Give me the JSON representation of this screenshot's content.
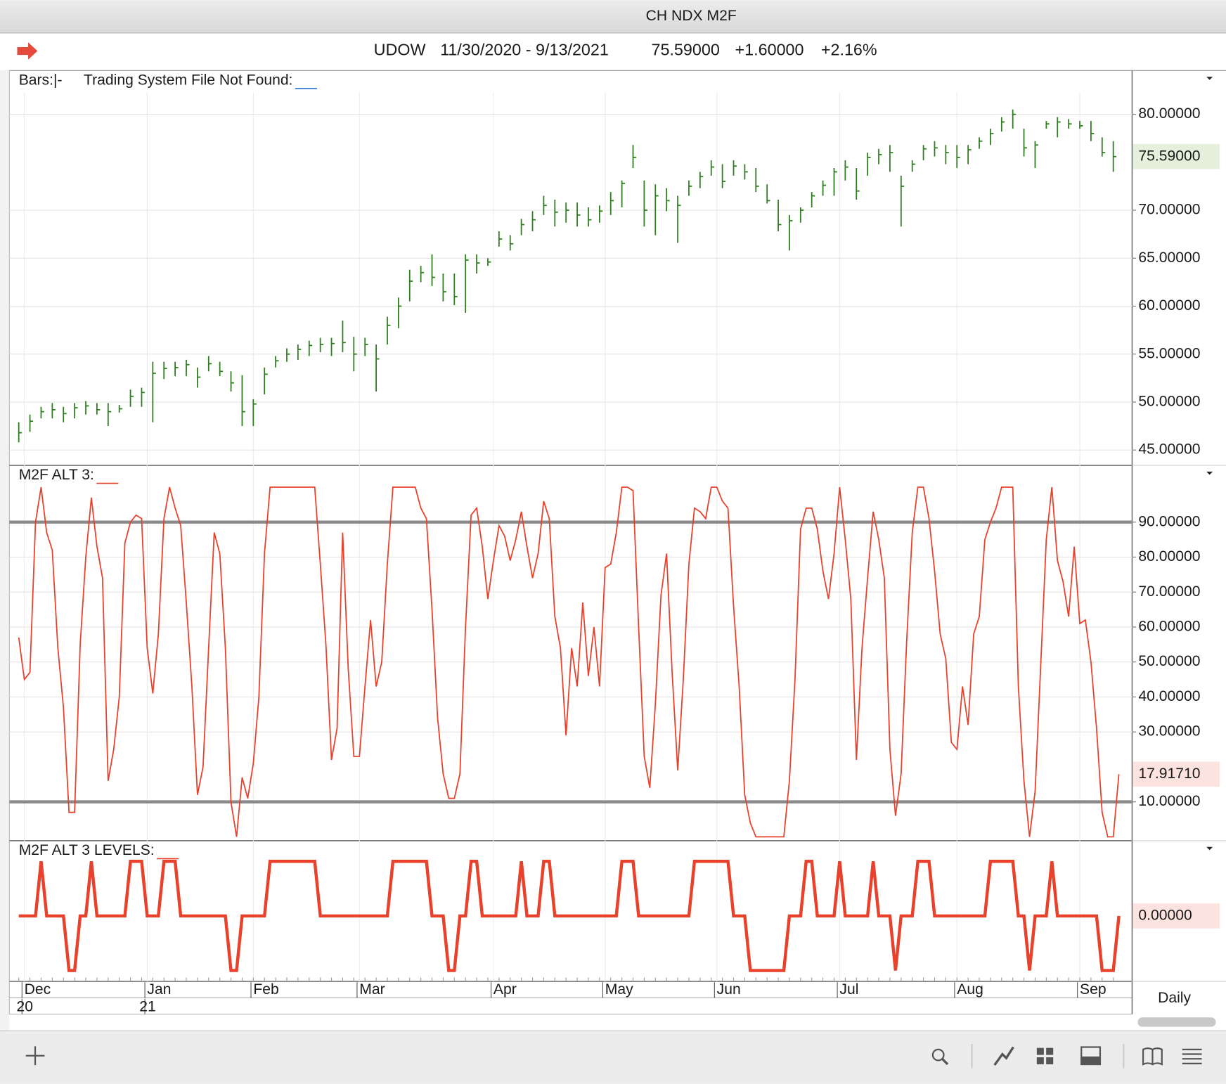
{
  "window": {
    "title": "CH NDX M2F",
    "period": "Daily"
  },
  "header": {
    "symbol": "UDOW",
    "date_range": "11/30/2020 - 9/13/2021",
    "last": "75.59000",
    "change": "+1.60000",
    "change_pct": "+2.16%"
  },
  "chart_data": [
    {
      "type": "ohlc",
      "label": "Bars:|-",
      "sublabel": "Trading System File Not Found:",
      "color": "#2e7d1e",
      "xlim": [
        0,
        197
      ],
      "ylim": [
        43.4,
        84.4
      ],
      "yticks": [
        {
          "value": 45,
          "label": "45.00000"
        },
        {
          "value": 50,
          "label": "50.00000"
        },
        {
          "value": 55,
          "label": "55.00000"
        },
        {
          "value": 60,
          "label": "60.00000"
        },
        {
          "value": 65,
          "label": "65.00000"
        },
        {
          "value": 70,
          "label": "70.00000"
        },
        {
          "value": 80,
          "label": "80.00000"
        }
      ],
      "last_value_label": "75.59000",
      "x": [
        0,
        2,
        4,
        6,
        8,
        10,
        12,
        14,
        16,
        18,
        20,
        22,
        24,
        26,
        28,
        30,
        32,
        34,
        36,
        38,
        40,
        42,
        44,
        46,
        48,
        50,
        52,
        54,
        56,
        58,
        60,
        62,
        64,
        66,
        68,
        70,
        72,
        74,
        76,
        78,
        80,
        82,
        84,
        86,
        88,
        90,
        92,
        94,
        96,
        98,
        100,
        102,
        104,
        106,
        108,
        110,
        112,
        114,
        116,
        118,
        120,
        122,
        124,
        126,
        128,
        130,
        132,
        134,
        136,
        138,
        140,
        142,
        144,
        146,
        148,
        150,
        152,
        154,
        156,
        158,
        160,
        162,
        164,
        166,
        168,
        170,
        172,
        174,
        176,
        178,
        180,
        182,
        184,
        186,
        188,
        190,
        192,
        194,
        196
      ],
      "high": [
        47.9,
        48.7,
        49.5,
        49.9,
        49.5,
        49.9,
        50.1,
        49.9,
        49.9,
        49.7,
        51.3,
        51.5,
        54.2,
        54.2,
        54.2,
        54.4,
        53.6,
        54.8,
        54.2,
        53.2,
        52.8,
        50.3,
        53.6,
        54.8,
        55.6,
        56.0,
        56.4,
        56.7,
        56.7,
        58.5,
        56.8,
        56.7,
        56.0,
        58.9,
        60.9,
        63.8,
        64.2,
        65.4,
        63.4,
        63.4,
        65.4,
        65.4,
        65.0,
        67.8,
        67.4,
        69.1,
        69.9,
        71.5,
        71.1,
        70.8,
        70.8,
        70.3,
        70.5,
        71.9,
        73.1,
        76.8,
        73.1,
        72.7,
        72.3,
        71.5,
        73.1,
        74.0,
        75.2,
        74.8,
        75.2,
        74.8,
        74.4,
        72.7,
        71.1,
        69.5,
        70.3,
        71.9,
        73.1,
        74.4,
        75.2,
        74.4,
        76.0,
        76.4,
        76.8,
        73.6,
        75.2,
        76.8,
        77.2,
        76.8,
        76.8,
        76.8,
        77.6,
        78.5,
        79.7,
        80.5,
        78.5,
        77.2,
        79.3,
        79.7,
        79.5,
        79.3,
        79.3,
        77.6,
        77.2
      ],
      "low": [
        45.8,
        46.9,
        48.3,
        48.3,
        47.9,
        48.3,
        48.7,
        48.7,
        47.5,
        48.9,
        49.5,
        49.5,
        47.9,
        52.4,
        52.7,
        52.7,
        51.5,
        53.2,
        52.7,
        51.1,
        47.5,
        47.5,
        50.8,
        53.6,
        54.2,
        54.4,
        54.8,
        55.2,
        54.8,
        55.2,
        53.2,
        54.8,
        51.1,
        56.0,
        57.7,
        60.5,
        62.5,
        62.1,
        60.5,
        60.1,
        59.3,
        63.4,
        64.2,
        66.2,
        65.8,
        67.4,
        67.8,
        69.5,
        68.3,
        68.7,
        68.3,
        68.3,
        68.7,
        69.5,
        70.3,
        74.4,
        68.3,
        67.4,
        69.9,
        66.6,
        71.5,
        72.3,
        73.6,
        72.3,
        73.6,
        73.2,
        71.9,
        70.7,
        67.8,
        65.8,
        68.7,
        70.3,
        71.5,
        71.5,
        73.1,
        71.1,
        73.6,
        74.8,
        74.0,
        68.3,
        74.0,
        75.2,
        75.6,
        74.8,
        74.4,
        74.8,
        76.4,
        76.8,
        78.2,
        78.5,
        75.6,
        74.4,
        78.5,
        77.6,
        78.5,
        78.5,
        77.2,
        75.6,
        74.0
      ],
      "close": [
        46.8,
        48.0,
        49.0,
        49.2,
        48.8,
        49.4,
        49.6,
        49.2,
        49.0,
        49.3,
        50.6,
        51.0,
        53.0,
        53.5,
        53.6,
        53.9,
        52.6,
        54.0,
        53.2,
        52.0,
        49.0,
        49.8,
        52.9,
        54.3,
        55.0,
        55.5,
        55.9,
        56.0,
        56.1,
        56.2,
        55.0,
        56.0,
        54.5,
        58.0,
        60.0,
        62.6,
        63.5,
        63.0,
        61.5,
        61.0,
        64.8,
        64.5,
        64.6,
        67.0,
        66.5,
        68.5,
        69.0,
        70.5,
        69.8,
        70.0,
        69.5,
        69.0,
        69.9,
        71.0,
        72.8,
        75.5,
        70.0,
        71.5,
        71.0,
        70.5,
        72.5,
        73.5,
        74.5,
        73.0,
        74.6,
        74.0,
        72.5,
        71.0,
        68.5,
        68.9,
        70.0,
        71.5,
        72.6,
        74.0,
        74.5,
        72.0,
        75.5,
        75.8,
        76.0,
        72.5,
        74.8,
        76.4,
        76.5,
        76.0,
        75.5,
        76.3,
        77.2,
        78.0,
        79.2,
        80.0,
        76.5,
        76.8,
        79.0,
        79.2,
        79.0,
        78.8,
        78.0,
        76.0,
        75.59
      ]
    },
    {
      "type": "line",
      "label": "M2F ALT 3:",
      "color": "#e8412c",
      "xlim": [
        0,
        197
      ],
      "ylim": [
        -1.1,
        106
      ],
      "yticks": [
        {
          "value": 10,
          "label": "10.00000"
        },
        {
          "value": 30,
          "label": "30.00000"
        },
        {
          "value": 40,
          "label": "40.00000"
        },
        {
          "value": 50,
          "label": "50.00000"
        },
        {
          "value": 60,
          "label": "60.00000"
        },
        {
          "value": 70,
          "label": "70.00000"
        },
        {
          "value": 80,
          "label": "80.00000"
        },
        {
          "value": 90,
          "label": "90.00000"
        }
      ],
      "reference_lines": [
        90,
        10
      ],
      "last_value_label": "17.91710",
      "x": [
        0,
        1,
        2,
        3,
        4,
        5,
        6,
        7,
        8,
        9,
        10,
        11,
        12,
        13,
        14,
        15,
        16,
        17,
        18,
        19,
        20,
        21,
        22,
        23,
        24,
        25,
        26,
        27,
        28,
        29,
        30,
        31,
        32,
        33,
        34,
        35,
        36,
        37,
        38,
        39,
        40,
        41,
        42,
        43,
        44,
        45,
        53,
        54,
        55,
        56,
        57,
        58,
        59,
        60,
        61,
        62,
        63,
        64,
        65,
        66,
        67,
        71,
        72,
        73,
        74,
        75,
        76,
        77,
        78,
        79,
        80,
        81,
        82,
        83,
        84,
        85,
        86,
        87,
        88,
        89,
        90,
        91,
        92,
        93,
        94,
        95,
        96,
        97,
        98,
        99,
        100,
        101,
        102,
        103,
        104,
        105,
        106,
        107,
        108,
        109,
        110,
        111,
        112,
        113,
        114,
        115,
        116,
        117,
        118,
        119,
        120,
        121,
        122,
        123,
        124,
        125,
        126,
        127,
        128,
        129,
        130,
        131,
        132,
        137,
        138,
        139,
        140,
        141,
        142,
        143,
        144,
        145,
        146,
        147,
        148,
        149,
        150,
        151,
        152,
        153,
        154,
        155,
        156,
        157,
        158,
        159,
        160,
        161,
        162,
        163,
        164,
        165,
        166,
        167,
        168,
        169,
        170,
        171,
        172,
        173,
        174,
        175,
        176,
        178,
        179,
        180,
        181,
        182,
        183,
        184,
        185,
        186,
        187,
        188,
        189,
        190,
        191,
        192,
        193,
        194,
        195,
        196,
        197
      ],
      "values": [
        57,
        45,
        47,
        90,
        100,
        87,
        82,
        54,
        37,
        7,
        7,
        55,
        80,
        97,
        83,
        74,
        16,
        25,
        40,
        84,
        90,
        92,
        91,
        54,
        41,
        58,
        91,
        100,
        94,
        89,
        67,
        43,
        12,
        20,
        54,
        87,
        81,
        54,
        10,
        0,
        17,
        11,
        21,
        40,
        81,
        100,
        100,
        78,
        55,
        22,
        31,
        87,
        48,
        23,
        23,
        43,
        62,
        43,
        50,
        78,
        100,
        100,
        94,
        91,
        65,
        34,
        18,
        11,
        11,
        18,
        60,
        92,
        94,
        83,
        68,
        79,
        89,
        86,
        79,
        85,
        93,
        83,
        74,
        81,
        96,
        91,
        63,
        54,
        29,
        54,
        43,
        67,
        46,
        60,
        43,
        77,
        78,
        87,
        100,
        100,
        99,
        60,
        23,
        14,
        38,
        69,
        81,
        47,
        19,
        45,
        78,
        94,
        93,
        91,
        100,
        100,
        96,
        94,
        66,
        43,
        12,
        4,
        0,
        0,
        16,
        45,
        88,
        94,
        94,
        88,
        76,
        68,
        81,
        100,
        85,
        68,
        22,
        54,
        74,
        93,
        85,
        74,
        25,
        6,
        18,
        56,
        87,
        100,
        100,
        91,
        76,
        58,
        51,
        27,
        25,
        43,
        32,
        58,
        63,
        85,
        90,
        94,
        100,
        100,
        43,
        16,
        0,
        13,
        49,
        85,
        100,
        79,
        73,
        63,
        83,
        61,
        62,
        50,
        31,
        7,
        0,
        0,
        17.9171
      ]
    },
    {
      "type": "line",
      "label": "M2F ALT 3 LEVELS:",
      "color": "#e8412c",
      "xlim": [
        0,
        197
      ],
      "ylim": [
        -1.2,
        1.35
      ],
      "last_value_label": "0.00000",
      "xticks": [
        {
          "value": 1,
          "label": "Dec"
        },
        {
          "value": 23,
          "label": "Jan"
        },
        {
          "value": 42,
          "label": "Feb"
        },
        {
          "value": 61,
          "label": "Mar"
        },
        {
          "value": 85,
          "label": "Apr"
        },
        {
          "value": 105,
          "label": "May"
        },
        {
          "value": 125,
          "label": "Jun"
        },
        {
          "value": 147,
          "label": "Jul"
        },
        {
          "value": 168,
          "label": "Aug"
        },
        {
          "value": 190,
          "label": "Sep"
        }
      ],
      "year_ticks": [
        {
          "value": 1,
          "label": "20"
        },
        {
          "value": 23,
          "label": "21"
        }
      ],
      "x": [
        0,
        1,
        2,
        3,
        4,
        5,
        6,
        7,
        8,
        9,
        10,
        11,
        12,
        13,
        14,
        15,
        16,
        17,
        18,
        19,
        20,
        21,
        22,
        23,
        24,
        25,
        26,
        27,
        28,
        29,
        30,
        31,
        32,
        33,
        34,
        35,
        36,
        37,
        38,
        39,
        40,
        41,
        42,
        43,
        44,
        45,
        53,
        54,
        55,
        56,
        57,
        58,
        59,
        60,
        61,
        62,
        63,
        64,
        65,
        66,
        67,
        71,
        72,
        73,
        74,
        75,
        76,
        77,
        78,
        79,
        80,
        81,
        82,
        83,
        84,
        85,
        86,
        87,
        88,
        89,
        90,
        91,
        92,
        93,
        94,
        95,
        96,
        97,
        98,
        99,
        100,
        101,
        102,
        103,
        104,
        105,
        106,
        107,
        108,
        109,
        110,
        111,
        112,
        113,
        114,
        115,
        116,
        117,
        118,
        119,
        120,
        121,
        122,
        123,
        124,
        125,
        126,
        127,
        128,
        129,
        130,
        131,
        132,
        137,
        138,
        139,
        140,
        141,
        142,
        143,
        144,
        145,
        146,
        147,
        148,
        149,
        150,
        151,
        152,
        153,
        154,
        155,
        156,
        157,
        158,
        159,
        160,
        161,
        162,
        163,
        164,
        165,
        166,
        167,
        168,
        169,
        170,
        171,
        172,
        173,
        174,
        175,
        176,
        178,
        179,
        180,
        181,
        182,
        183,
        184,
        185,
        186,
        187,
        188,
        189,
        190,
        191,
        192,
        193,
        194,
        195,
        196,
        197
      ],
      "values": [
        0,
        0,
        0,
        0,
        1,
        0,
        0,
        0,
        0,
        -1,
        -1,
        0,
        0,
        1,
        0,
        0,
        0,
        0,
        0,
        0,
        1,
        1,
        1,
        0,
        0,
        0,
        1,
        1,
        1,
        0,
        0,
        0,
        0,
        0,
        0,
        0,
        0,
        0,
        -1,
        -1,
        0,
        0,
        0,
        0,
        0,
        1,
        1,
        0,
        0,
        0,
        0,
        0,
        0,
        0,
        0,
        0,
        0,
        0,
        0,
        0,
        1,
        1,
        1,
        1,
        0,
        0,
        0,
        -1,
        -1,
        0,
        0,
        1,
        1,
        0,
        0,
        0,
        0,
        0,
        0,
        0,
        1,
        0,
        0,
        0,
        1,
        1,
        0,
        0,
        0,
        0,
        0,
        0,
        0,
        0,
        0,
        0,
        0,
        0,
        1,
        1,
        1,
        0,
        0,
        0,
        0,
        0,
        0,
        0,
        0,
        0,
        0,
        1,
        1,
        1,
        1,
        1,
        1,
        1,
        0,
        0,
        0,
        -1,
        -1,
        -1,
        0,
        0,
        0,
        1,
        1,
        0,
        0,
        0,
        0,
        1,
        0,
        0,
        0,
        0,
        0,
        1,
        0,
        0,
        0,
        -1,
        0,
        0,
        0,
        1,
        1,
        1,
        0,
        0,
        0,
        0,
        0,
        0,
        0,
        0,
        0,
        0,
        1,
        1,
        1,
        1,
        0,
        0,
        -1,
        0,
        0,
        0,
        1,
        0,
        0,
        0,
        0,
        0,
        0,
        0,
        0,
        -1,
        -1,
        -1,
        0
      ]
    }
  ]
}
